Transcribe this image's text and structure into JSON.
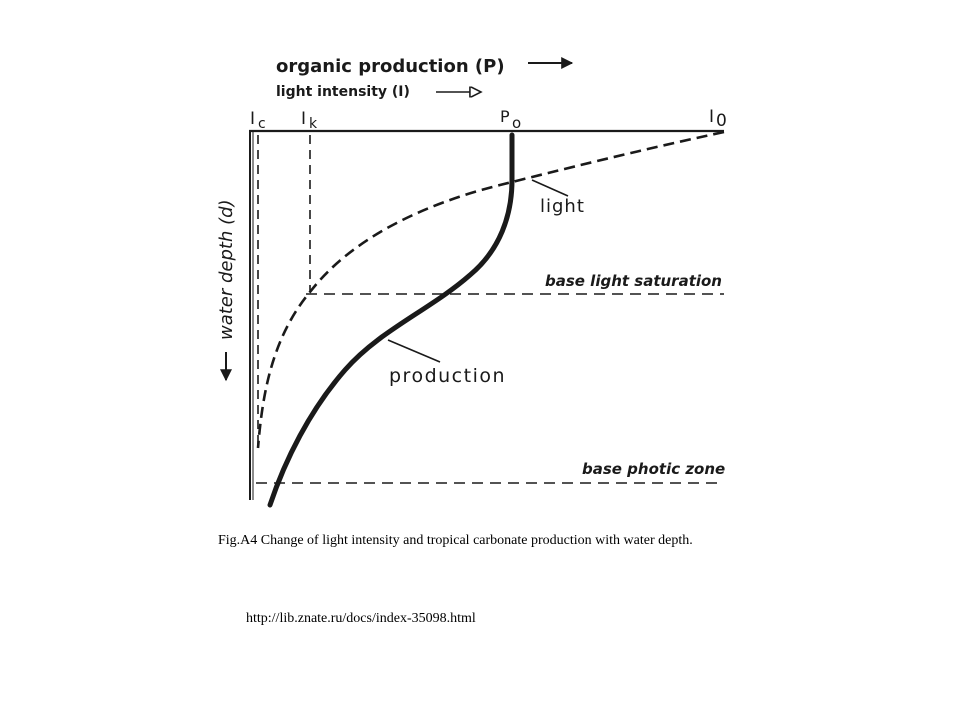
{
  "figure": {
    "header_line1": "organic production (P)",
    "header_line2": "light intensity (I)",
    "depth_axis_label": "water depth (d)",
    "top_labels": {
      "ic_main": "I",
      "ic_sub": "c",
      "ik_main": "I",
      "ik_sub": "k",
      "po_main": "P",
      "po_sub": "o",
      "i0_main": "I",
      "i0_sub": "0"
    },
    "curve_labels": {
      "light": "light",
      "production": "production"
    },
    "level_labels": {
      "saturation": "base light saturation",
      "photic": "base photic zone"
    }
  },
  "caption": "Fig.A4 Change of light intensity and tropical carbonate production with water depth.",
  "source_url": "http://lib.znate.ru/docs/index-35098.html"
}
